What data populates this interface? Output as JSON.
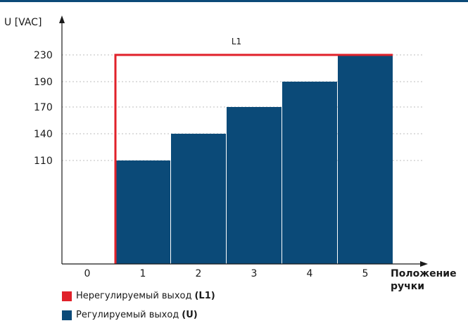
{
  "chart_data": {
    "type": "bar",
    "ylabel": "U [VAC]",
    "xlabel_line1": "Положение",
    "xlabel_line2": "ручки",
    "x_ticks": [
      "0",
      "1",
      "2",
      "3",
      "4",
      "5"
    ],
    "categories": [
      "1",
      "2",
      "3",
      "4",
      "5"
    ],
    "y_ticks": [
      "110",
      "140",
      "170",
      "190",
      "230"
    ],
    "series": [
      {
        "name": "Регулируемый выход (U)",
        "values": [
          110,
          140,
          170,
          190,
          230
        ]
      },
      {
        "name": "Нерегулируемый выход (L1)",
        "values": [
          230,
          230,
          230,
          230,
          230
        ]
      }
    ],
    "line_label": "L1",
    "grid": "dotted horizontal at y ticks"
  },
  "legend": [
    {
      "text": "Нерегулируемый выход",
      "bold": "(L1)",
      "color": "#e0212a"
    },
    {
      "text": "Регулируемый выход",
      "bold": "(U)",
      "color": "#0b4a78"
    }
  ],
  "colors": {
    "bar": "#0b4a78",
    "line": "#e0212a",
    "axis": "#1a1a1a",
    "grid": "#bdbdbd"
  }
}
